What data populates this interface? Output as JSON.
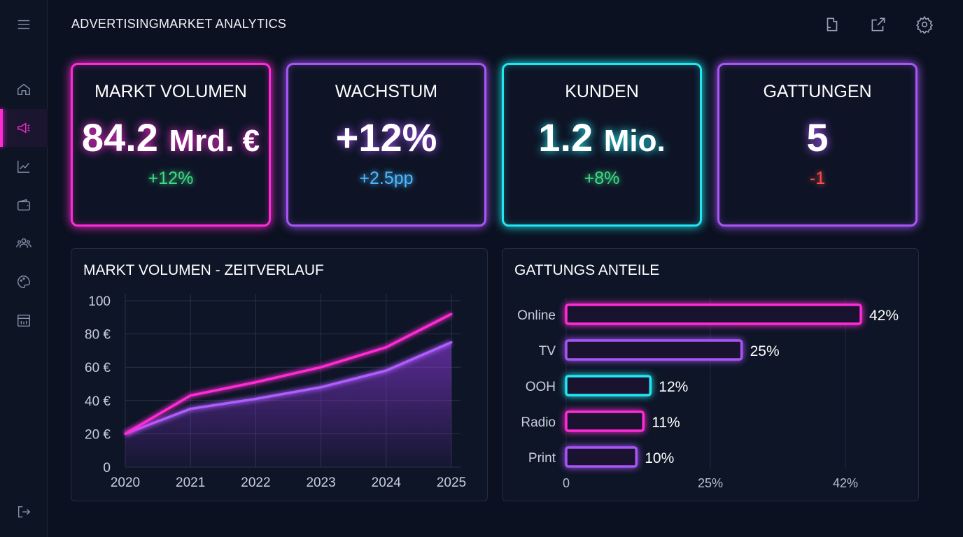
{
  "app": {
    "title": "ADVERTISINGMARKET ANALYTICS"
  },
  "sidebar": {
    "items": [
      {
        "icon": "home-icon"
      },
      {
        "icon": "megaphone-icon",
        "active": true
      },
      {
        "icon": "trend-chart-icon"
      },
      {
        "icon": "wallet-icon"
      },
      {
        "icon": "users-icon"
      },
      {
        "icon": "palette-icon"
      },
      {
        "icon": "calendar-icon"
      }
    ],
    "logout_icon": "logout-icon"
  },
  "toolbar": {
    "icons": [
      "export-icon",
      "open-external-icon",
      "gear-icon"
    ]
  },
  "kpis": [
    {
      "label": "MARKT VOLUMEN",
      "value": "84.2",
      "unit": "Mrd. €",
      "change": "+12%",
      "color": "#ff2bd6",
      "change_color": "#3ddc84"
    },
    {
      "label": "WACHSTUM",
      "value": "+12%",
      "unit": "",
      "change": "+2.5pp",
      "color": "#a855f7",
      "change_color": "#4cb8ff"
    },
    {
      "label": "KUNDEN",
      "value": "1.2",
      "unit": "Mio.",
      "change": "+8%",
      "color": "#22e6f0",
      "change_color": "#3ddc84"
    },
    {
      "label": "GATTUNGEN",
      "value": "5",
      "unit": "",
      "change": "-1",
      "color": "#a855f7",
      "change_color": "#ff4d4d"
    }
  ],
  "chart_data": [
    {
      "type": "line",
      "title": "MARKT VOLUMEN - ZEITVERLAUF",
      "x": [
        "2020",
        "2021",
        "2022",
        "2023",
        "2024",
        "2025"
      ],
      "yticks": [
        "0",
        "20 €",
        "40 €",
        "60 €",
        "80 €",
        "100"
      ],
      "ylim": [
        0,
        100
      ],
      "grid": true,
      "series": [
        {
          "values": [
            20,
            43,
            51,
            60,
            72,
            92
          ],
          "color": "#ff2bd6"
        },
        {
          "values": [
            20,
            35,
            41,
            48,
            58,
            75
          ],
          "color": "#b05cff",
          "area": true
        }
      ]
    },
    {
      "type": "bar",
      "orientation": "horizontal",
      "title": "GATTUNGS ANTEILE",
      "categories": [
        "Online",
        "TV",
        "OOH",
        "Radio",
        "Print"
      ],
      "values": [
        42,
        25,
        12,
        11,
        10
      ],
      "labels": [
        "42%",
        "25%",
        "12%",
        "11%",
        "10%"
      ],
      "colors": [
        "#ff2bd6",
        "#a855f7",
        "#22e6f0",
        "#ff2bd6",
        "#a855f7"
      ],
      "xticks": [
        "0",
        "25%",
        "42%"
      ]
    }
  ]
}
